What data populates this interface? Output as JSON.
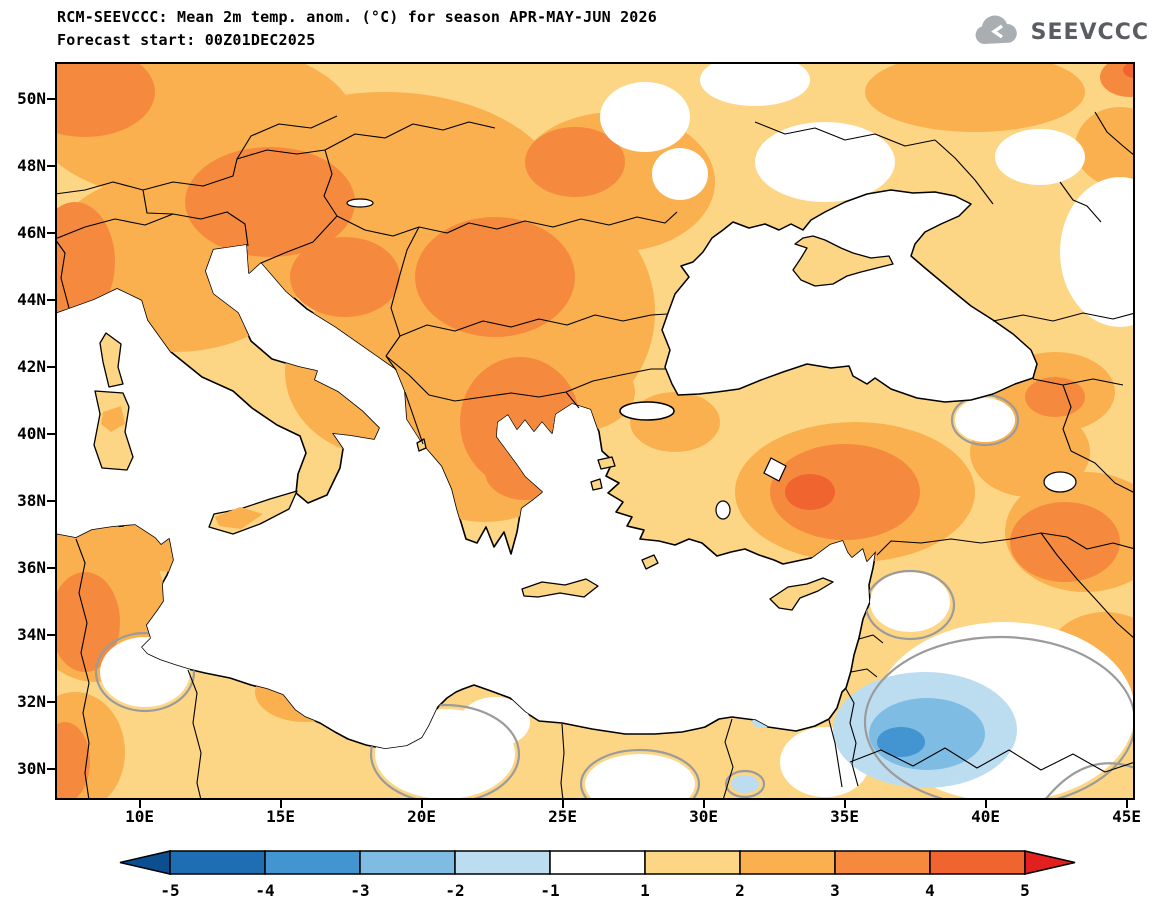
{
  "header": {
    "title_line1": "RCM-SEEVCCC: Mean 2m temp. anom. (°C) for season APR-MAY-JUN 2026",
    "title_line2": "Forecast start: 00Z01DEC2025",
    "logo_text": "SEEVCCC"
  },
  "map": {
    "lat_ticks": [
      {
        "label": "50N",
        "value": 50
      },
      {
        "label": "48N",
        "value": 48
      },
      {
        "label": "46N",
        "value": 46
      },
      {
        "label": "44N",
        "value": 44
      },
      {
        "label": "42N",
        "value": 42
      },
      {
        "label": "40N",
        "value": 40
      },
      {
        "label": "38N",
        "value": 38
      },
      {
        "label": "36N",
        "value": 36
      },
      {
        "label": "34N",
        "value": 34
      },
      {
        "label": "32N",
        "value": 32
      },
      {
        "label": "30N",
        "value": 30
      }
    ],
    "lon_ticks": [
      {
        "label": "10E",
        "value": 10
      },
      {
        "label": "15E",
        "value": 15
      },
      {
        "label": "20E",
        "value": 20
      },
      {
        "label": "25E",
        "value": 25
      },
      {
        "label": "30E",
        "value": 30
      },
      {
        "label": "35E",
        "value": 35
      },
      {
        "label": "40E",
        "value": 40
      },
      {
        "label": "45E",
        "value": 45
      }
    ]
  },
  "colorbar": {
    "tick_labels": [
      "-5",
      "-4",
      "-3",
      "-2",
      "-1",
      "1",
      "2",
      "3",
      "4",
      "5"
    ],
    "segment_colors": [
      "#1f6eb3",
      "#4295d1",
      "#7fbce3",
      "#bcdcf0",
      "#ffffff",
      "#fdd685",
      "#fab04e",
      "#f58a3e",
      "#f0642f"
    ],
    "below_color": "#0c4f91",
    "above_color": "#e2201f"
  },
  "palette": {
    "p_1": "#fdd685",
    "p_2": "#fab04e",
    "p_3": "#f58a3e",
    "p_4": "#f0642f",
    "p_m2": "#bcdcf0",
    "p_m3": "#7fbce3",
    "p_m4": "#4295d1"
  }
}
